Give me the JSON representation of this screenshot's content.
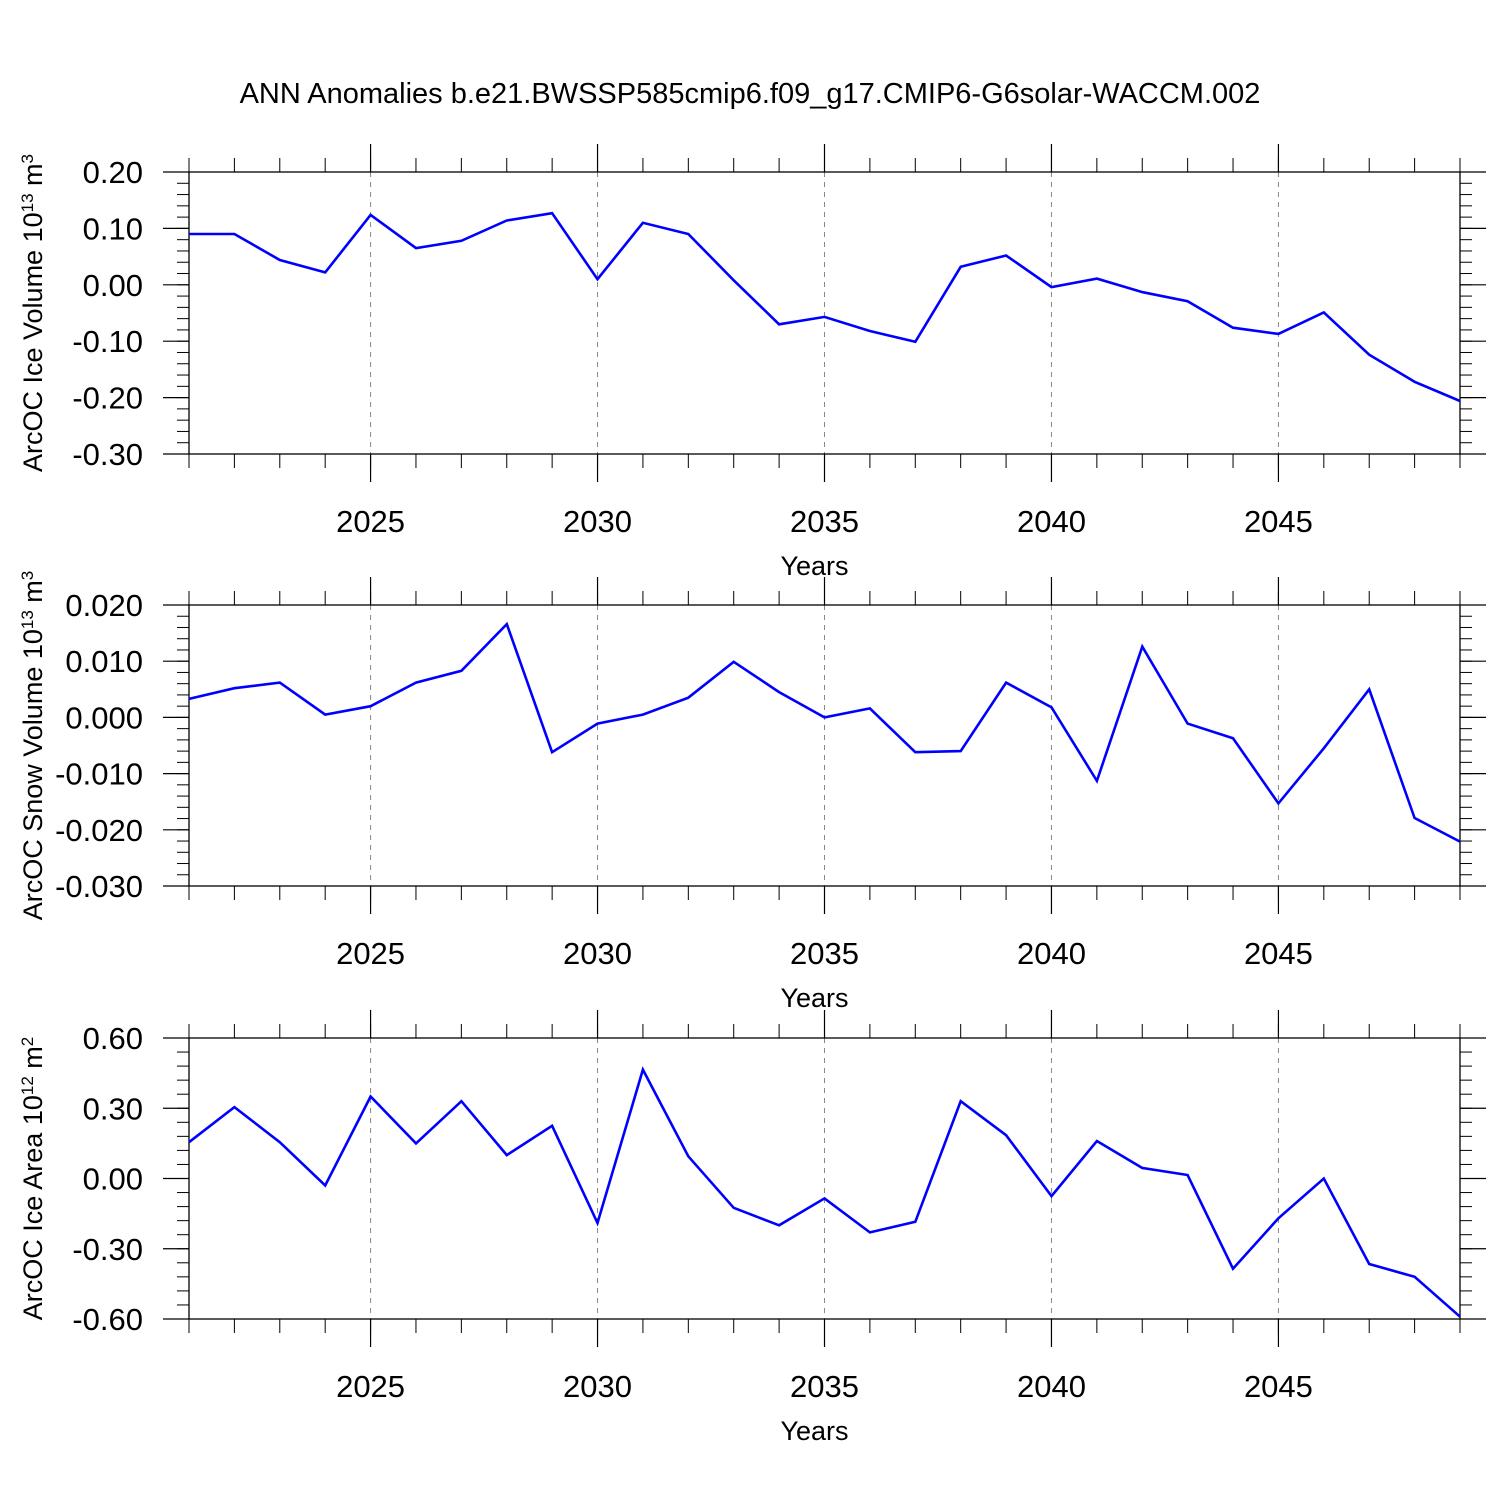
{
  "title": "ANN Anomalies b.e21.BWSSP585cmip6.f09_g17.CMIP6-G6solar-WACCM.002",
  "line_color": "#0000ff",
  "chart_data": [
    {
      "type": "line",
      "ylabel_main": "ArcOC Ice Volume 10",
      "ylabel_exp": "13",
      "ylabel_unit": "m",
      "ylabel_unit_exp": "3",
      "xlabel": "Years",
      "xlim": [
        2021,
        2049
      ],
      "ylim": [
        -0.3,
        0.2
      ],
      "yticks": [
        -0.3,
        -0.2,
        -0.1,
        0.0,
        0.1,
        0.2
      ],
      "yticklabels": [
        "-0.30",
        "-0.20",
        "-0.10",
        "0.00",
        "0.10",
        "0.20"
      ],
      "yminor": 0.02,
      "xticks": [
        2025,
        2030,
        2035,
        2040,
        2045
      ],
      "xticklabels": [
        "2025",
        "2030",
        "2035",
        "2040",
        "2045"
      ],
      "x": [
        2021,
        2022,
        2023,
        2024,
        2025,
        2026,
        2027,
        2028,
        2029,
        2030,
        2031,
        2032,
        2033,
        2034,
        2035,
        2036,
        2037,
        2038,
        2039,
        2040,
        2041,
        2042,
        2043,
        2044,
        2045,
        2046,
        2047,
        2048,
        2049
      ],
      "y": [
        0.09,
        0.09,
        0.044,
        0.022,
        0.124,
        0.065,
        0.078,
        0.114,
        0.127,
        0.01,
        0.11,
        0.09,
        0.008,
        -0.07,
        -0.057,
        -0.082,
        -0.101,
        0.032,
        0.052,
        -0.004,
        0.011,
        -0.013,
        -0.029,
        -0.076,
        -0.087,
        -0.049,
        -0.124,
        -0.172,
        -0.206
      ]
    },
    {
      "type": "line",
      "ylabel_main": "ArcOC Snow Volume 10",
      "ylabel_exp": "13",
      "ylabel_unit": "m",
      "ylabel_unit_exp": "3",
      "xlabel": "Years",
      "xlim": [
        2021,
        2049
      ],
      "ylim": [
        -0.03,
        0.02
      ],
      "yticks": [
        -0.03,
        -0.02,
        -0.01,
        0.0,
        0.01,
        0.02
      ],
      "yticklabels": [
        "-0.030",
        "-0.020",
        "-0.010",
        "0.000",
        "0.010",
        "0.020"
      ],
      "yminor": 0.002,
      "xticks": [
        2025,
        2030,
        2035,
        2040,
        2045
      ],
      "xticklabels": [
        "2025",
        "2030",
        "2035",
        "2040",
        "2045"
      ],
      "x": [
        2021,
        2022,
        2023,
        2024,
        2025,
        2026,
        2027,
        2028,
        2029,
        2030,
        2031,
        2032,
        2033,
        2034,
        2035,
        2036,
        2037,
        2038,
        2039,
        2040,
        2041,
        2042,
        2043,
        2044,
        2045,
        2046,
        2047,
        2048,
        2049
      ],
      "y": [
        0.0033,
        0.0052,
        0.0062,
        0.0005,
        0.002,
        0.0062,
        0.0083,
        0.0166,
        -0.0062,
        -0.0011,
        0.0005,
        0.0035,
        0.0099,
        0.0045,
        0.0,
        0.0016,
        -0.0062,
        -0.006,
        0.0062,
        0.0018,
        -0.0113,
        0.0126,
        -0.0011,
        -0.0037,
        -0.0153,
        -0.0055,
        0.005,
        -0.0179,
        -0.0221
      ]
    },
    {
      "type": "line",
      "ylabel_main": "ArcOC Ice Area 10",
      "ylabel_exp": "12",
      "ylabel_unit": "m",
      "ylabel_unit_exp": "2",
      "xlabel": "Years",
      "xlim": [
        2021,
        2049
      ],
      "ylim": [
        -0.6,
        0.6
      ],
      "yticks": [
        -0.6,
        -0.3,
        0.0,
        0.3,
        0.6
      ],
      "yticklabels": [
        "-0.60",
        "-0.30",
        "0.00",
        "0.30",
        "0.60"
      ],
      "yminor": 0.06,
      "xticks": [
        2025,
        2030,
        2035,
        2040,
        2045
      ],
      "xticklabels": [
        "2025",
        "2030",
        "2035",
        "2040",
        "2045"
      ],
      "x": [
        2021,
        2022,
        2023,
        2024,
        2025,
        2026,
        2027,
        2028,
        2029,
        2030,
        2031,
        2032,
        2033,
        2034,
        2035,
        2036,
        2037,
        2038,
        2039,
        2040,
        2041,
        2042,
        2043,
        2044,
        2045,
        2046,
        2047,
        2048,
        2049
      ],
      "y": [
        0.155,
        0.305,
        0.155,
        -0.03,
        0.35,
        0.15,
        0.33,
        0.1,
        0.225,
        -0.19,
        0.465,
        0.095,
        -0.125,
        -0.2,
        -0.085,
        -0.23,
        -0.185,
        0.33,
        0.185,
        -0.075,
        0.16,
        0.045,
        0.015,
        -0.385,
        -0.17,
        0.0,
        -0.365,
        -0.42,
        -0.59
      ]
    }
  ]
}
